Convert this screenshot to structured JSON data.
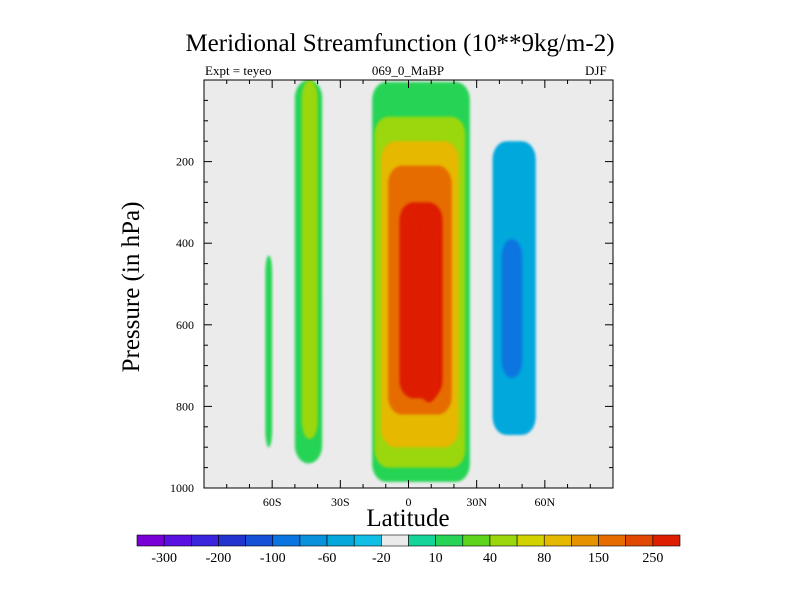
{
  "chart_data": {
    "type": "heatmap",
    "title": "Meridional Streamfunction (10**9kg/m-2)",
    "left_label": "Expt = teyeo",
    "center_label": "069_0_MaBP",
    "right_label": "DJF",
    "xlabel": "Latitude",
    "ylabel": "Pressure (in hPa)",
    "x_ticks": [
      {
        "value": -60,
        "label": "60S"
      },
      {
        "value": -30,
        "label": "30S"
      },
      {
        "value": 0,
        "label": "0"
      },
      {
        "value": 30,
        "label": "30N"
      },
      {
        "value": 60,
        "label": "60N"
      }
    ],
    "y_ticks": [
      {
        "value": 200,
        "label": "200"
      },
      {
        "value": 400,
        "label": "400"
      },
      {
        "value": 600,
        "label": "600"
      },
      {
        "value": 800,
        "label": "800"
      },
      {
        "value": 1000,
        "label": "1000"
      }
    ],
    "xlim": [
      -90,
      90
    ],
    "ylim": [
      0,
      1000
    ],
    "colorbar": {
      "labels": [
        "-300",
        "-200",
        "-100",
        "-60",
        "-20",
        "10",
        "40",
        "80",
        "150",
        "250"
      ],
      "colors": [
        "#7a00d8",
        "#5a10e0",
        "#3a24dc",
        "#2233d0",
        "#1450d8",
        "#0a74e0",
        "#0a92dc",
        "#06a8dc",
        "#10bee6",
        "#ebebeb",
        "#14d49a",
        "#28d455",
        "#5ed41c",
        "#9ad70c",
        "#d2d200",
        "#e6b800",
        "#e69200",
        "#e66c00",
        "#e24800",
        "#de1e00"
      ]
    },
    "regions": [
      {
        "name": "southern-mid-cell-strip",
        "level": 10,
        "lat_min": -63,
        "lat_max": -60,
        "p_top": 430,
        "p_bottom": 900
      },
      {
        "name": "southern-ferrel-band",
        "level": 10,
        "lat_min": -50,
        "lat_max": -38,
        "p_top": 0,
        "p_bottom": 940
      },
      {
        "name": "southern-ferrel-core",
        "level": 40,
        "lat_min": -47,
        "lat_max": -40,
        "p_top": 0,
        "p_bottom": 880
      },
      {
        "name": "southern-negative-column",
        "level": -20,
        "lat_min": -37,
        "lat_max": -27,
        "p_top": 50,
        "p_bottom": 580
      },
      {
        "name": "hadley-outer",
        "level": 10,
        "lat_min": -16,
        "lat_max": 27,
        "p_top": 5,
        "p_bottom": 985
      },
      {
        "name": "hadley-40",
        "level": 40,
        "lat_min": -15,
        "lat_max": 25,
        "p_top": 90,
        "p_bottom": 950
      },
      {
        "name": "hadley-80",
        "level": 80,
        "lat_min": -12,
        "lat_max": 22,
        "p_top": 150,
        "p_bottom": 900
      },
      {
        "name": "hadley-150",
        "level": 150,
        "lat_min": -9,
        "lat_max": 19,
        "p_top": 210,
        "p_bottom": 820
      },
      {
        "name": "hadley-250",
        "level": 250,
        "lat_min": -4,
        "lat_max": 15,
        "p_top": 300,
        "p_bottom": 780
      },
      {
        "name": "hadley-core",
        "level": 350,
        "lat_min": 5,
        "lat_max": 13,
        "p_top": 340,
        "p_bottom": 790
      },
      {
        "name": "northern-negative-outer",
        "level": -20,
        "lat_min": 33,
        "lat_max": 60,
        "p_top": 0,
        "p_bottom": 950
      },
      {
        "name": "northern-negative-60",
        "level": -60,
        "lat_min": 37,
        "lat_max": 56,
        "p_top": 150,
        "p_bottom": 870
      },
      {
        "name": "northern-negative-100",
        "level": -100,
        "lat_min": 41,
        "lat_max": 50,
        "p_top": 390,
        "p_bottom": 730
      },
      {
        "name": "northern-polar-wisp",
        "level": -20,
        "lat_min": 68,
        "lat_max": 70,
        "p_top": 0,
        "p_bottom": 60
      }
    ]
  }
}
